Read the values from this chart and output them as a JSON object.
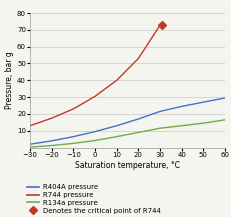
{
  "title": "",
  "xlabel": "Saturation temperature, °C",
  "ylabel": "Pressure, bar g",
  "xlim": [
    -30,
    60
  ],
  "ylim": [
    0,
    80
  ],
  "xticks": [
    -30,
    -20,
    -10,
    0,
    10,
    20,
    30,
    40,
    50,
    60
  ],
  "yticks": [
    10,
    20,
    30,
    40,
    50,
    60,
    70,
    80
  ],
  "r404a_x": [
    -30,
    -20,
    -10,
    0,
    10,
    20,
    30,
    40,
    50,
    60
  ],
  "r404a_y": [
    2.0,
    4.0,
    6.5,
    9.5,
    13.0,
    17.0,
    21.5,
    24.5,
    27.0,
    29.5
  ],
  "r744_x": [
    -30,
    -20,
    -10,
    0,
    10,
    20,
    30
  ],
  "r744_y": [
    13.0,
    17.5,
    23.0,
    30.5,
    40.0,
    53.0,
    72.8
  ],
  "r134a_x": [
    -30,
    -20,
    -10,
    0,
    10,
    20,
    30,
    40,
    50,
    60
  ],
  "r134a_y": [
    0.3,
    1.2,
    2.5,
    4.2,
    6.5,
    9.0,
    11.5,
    13.0,
    14.5,
    16.5
  ],
  "critical_x": 31.0,
  "critical_y": 72.8,
  "r404a_color": "#4472C4",
  "r744_color": "#C0392B",
  "r134a_color": "#70AD47",
  "critical_color": "#C0392B",
  "background_color": "#F5F5F0",
  "grid_color": "#C8C8C8",
  "legend_labels": [
    "R404A pressure",
    "R744 pressure",
    "R134a pressure",
    "Denotes the critical point of R744"
  ],
  "axis_label_fontsize": 5.5,
  "tick_fontsize": 5.0,
  "legend_fontsize": 5.0,
  "linewidth": 1.0
}
